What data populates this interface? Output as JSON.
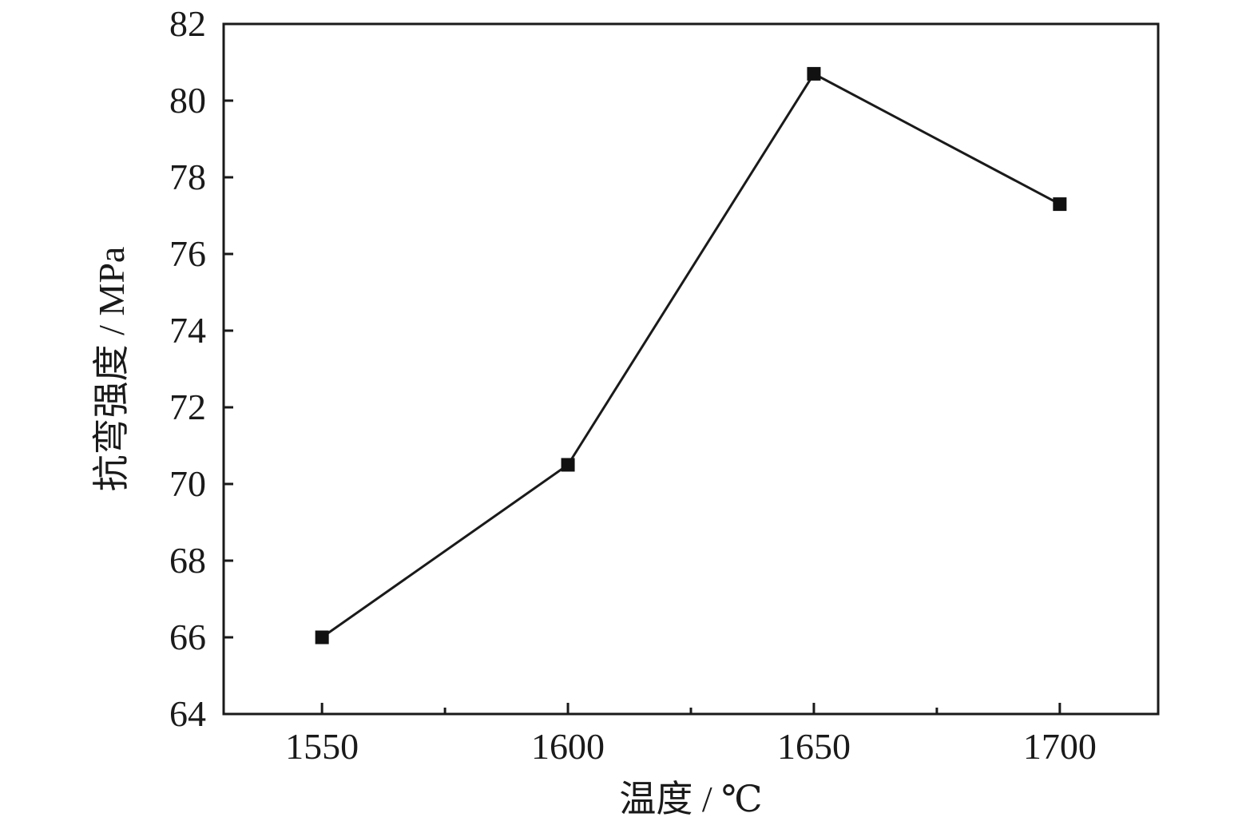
{
  "chart_data": {
    "type": "line",
    "title": "",
    "xlabel": "温度 / ℃",
    "ylabel": "抗弯强度 / MPa",
    "x": [
      1550,
      1600,
      1650,
      1700
    ],
    "series": [
      {
        "values": [
          66.0,
          70.5,
          80.7,
          77.3
        ]
      }
    ],
    "xlim": [
      1530,
      1720
    ],
    "ylim": [
      64,
      82
    ],
    "xticks": [
      1550,
      1600,
      1650,
      1700
    ],
    "xticks_minor": [
      1575,
      1625,
      1675
    ],
    "yticks": [
      64,
      66,
      68,
      70,
      72,
      74,
      76,
      78,
      80,
      82
    ],
    "grid": false,
    "legend": "none",
    "marker": "square",
    "colors": {
      "line": "#1a1a1a",
      "marker": "#111111",
      "axis": "#1a1a1a"
    }
  }
}
